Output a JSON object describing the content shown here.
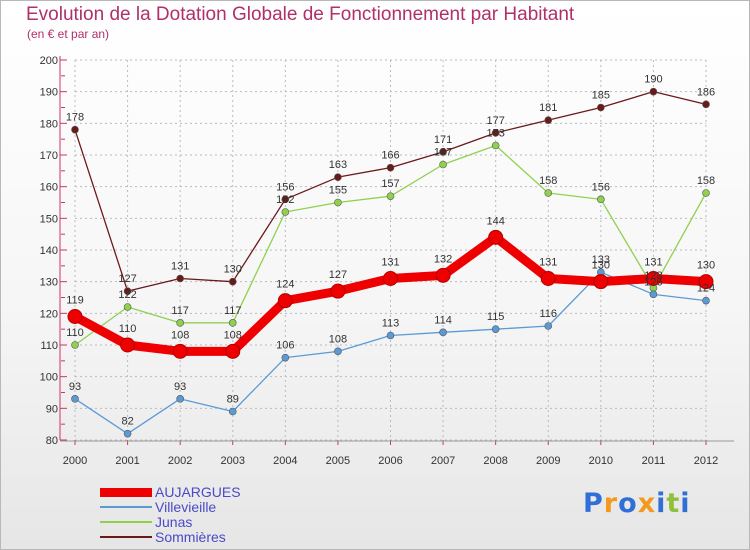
{
  "chart_data": {
    "type": "line",
    "title": "Evolution de la Dotation Globale de Fonctionnement par Habitant",
    "subtitle": "(en € et par an)",
    "categories": [
      "2000",
      "2001",
      "2002",
      "2003",
      "2004",
      "2005",
      "2006",
      "2007",
      "2008",
      "2009",
      "2010",
      "2011",
      "2012"
    ],
    "ylim": [
      80,
      200
    ],
    "yticks": [
      "80",
      "90",
      "100",
      "110",
      "120",
      "130",
      "140",
      "150",
      "160",
      "170",
      "180",
      "190",
      "200"
    ],
    "grid": true,
    "legend_position": "bottom-left",
    "series": [
      {
        "name": "AUJARGUES",
        "color": "#ee0000",
        "values": [
          119,
          110,
          108,
          108,
          124,
          127,
          131,
          132,
          144,
          131,
          130,
          131,
          130
        ]
      },
      {
        "name": "Villevieille",
        "color": "#5b9bd5",
        "values": [
          93,
          82,
          93,
          89,
          106,
          108,
          113,
          114,
          115,
          116,
          133,
          126,
          124
        ]
      },
      {
        "name": "Junas",
        "color": "#8fd14f",
        "values": [
          110,
          122,
          117,
          117,
          152,
          155,
          157,
          167,
          173,
          158,
          156,
          128,
          158
        ]
      },
      {
        "name": "Sommières",
        "color": "#6b1a1a",
        "values": [
          178,
          127,
          131,
          130,
          156,
          163,
          166,
          171,
          177,
          181,
          185,
          190,
          186
        ]
      }
    ]
  },
  "logo": {
    "text": "Proxiti",
    "colors": [
      "#2f6fd6",
      "#f39a1c",
      "#2f6fd6",
      "#f39a1c",
      "#2f6fd6",
      "#8fc13c",
      "#2f6fd6"
    ]
  }
}
